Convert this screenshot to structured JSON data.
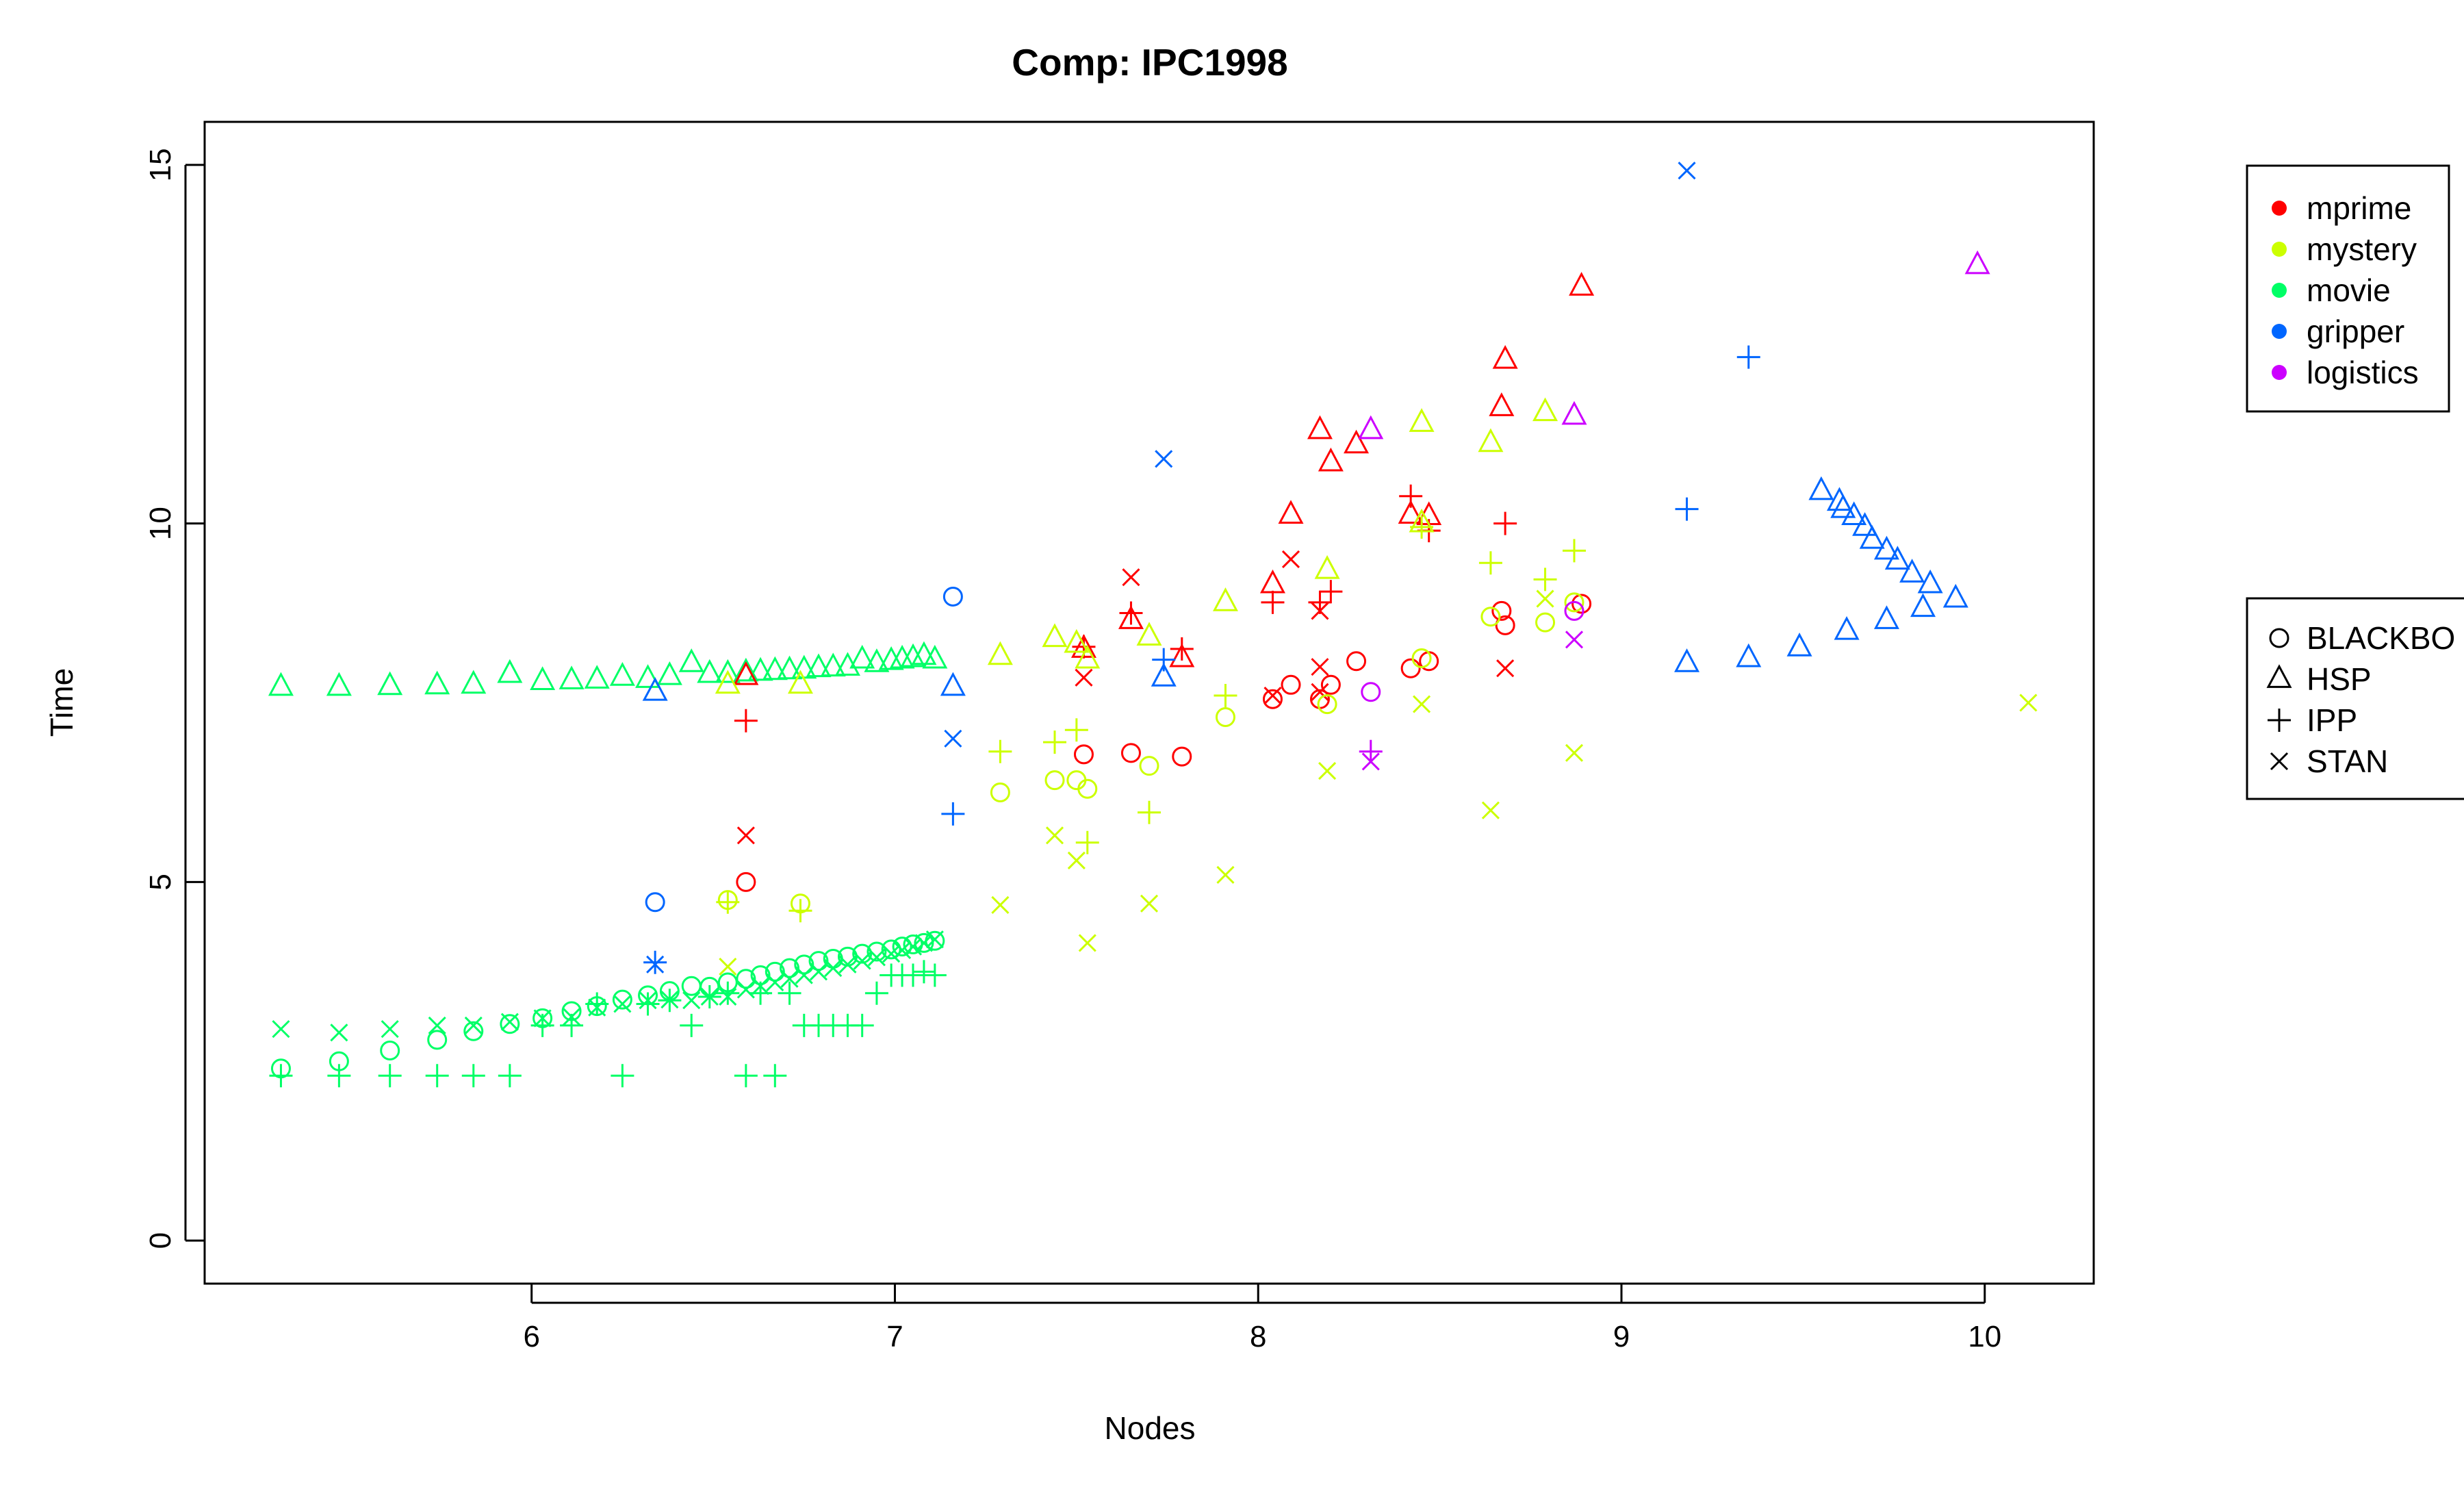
{
  "chart_data": {
    "type": "scatter",
    "title": "Comp: IPC1998",
    "xlabel": "Nodes",
    "ylabel": "Time",
    "xlim": [
      5.1,
      10.3
    ],
    "ylim": [
      -0.6,
      15.6
    ],
    "xticks": [
      6,
      7,
      8,
      9,
      10
    ],
    "yticks": [
      0,
      5,
      10,
      15
    ],
    "grid": false,
    "color_legend": {
      "placement": "right",
      "entries": [
        {
          "name": "mprime",
          "color": "#ff0000"
        },
        {
          "name": "mystery",
          "color": "#ccff00"
        },
        {
          "name": "movie",
          "color": "#00ff66"
        },
        {
          "name": "gripper",
          "color": "#0066ff"
        },
        {
          "name": "logistics",
          "color": "#cc00ff"
        }
      ]
    },
    "shape_legend": {
      "placement": "right",
      "entries": [
        {
          "name": "BLACKBO",
          "shape": "circle"
        },
        {
          "name": "HSP",
          "shape": "triangle"
        },
        {
          "name": "IPP",
          "shape": "plus"
        },
        {
          "name": "STAN",
          "shape": "cross"
        }
      ]
    },
    "series": [
      {
        "domain": "movie",
        "planner": "BLACKBO",
        "points": [
          [
            5.31,
            2.4
          ],
          [
            5.47,
            2.5
          ],
          [
            5.61,
            2.65
          ],
          [
            5.74,
            2.8
          ],
          [
            5.84,
            2.92
          ],
          [
            5.94,
            3.02
          ],
          [
            6.03,
            3.1
          ],
          [
            6.11,
            3.2
          ],
          [
            6.18,
            3.27
          ],
          [
            6.25,
            3.36
          ],
          [
            6.32,
            3.42
          ],
          [
            6.38,
            3.48
          ],
          [
            6.44,
            3.55
          ],
          [
            6.49,
            3.54
          ],
          [
            6.54,
            3.6
          ],
          [
            6.59,
            3.65
          ],
          [
            6.63,
            3.7
          ],
          [
            6.67,
            3.75
          ],
          [
            6.71,
            3.8
          ],
          [
            6.75,
            3.85
          ],
          [
            6.79,
            3.9
          ],
          [
            6.83,
            3.93
          ],
          [
            6.87,
            3.96
          ],
          [
            6.91,
            4.0
          ],
          [
            6.95,
            4.03
          ],
          [
            6.99,
            4.06
          ],
          [
            7.02,
            4.1
          ],
          [
            7.05,
            4.13
          ],
          [
            7.08,
            4.15
          ],
          [
            7.11,
            4.18
          ]
        ]
      },
      {
        "domain": "movie",
        "planner": "HSP",
        "points": [
          [
            5.31,
            7.72
          ],
          [
            5.47,
            7.72
          ],
          [
            5.61,
            7.73
          ],
          [
            5.74,
            7.74
          ],
          [
            5.84,
            7.75
          ],
          [
            5.94,
            7.9
          ],
          [
            6.03,
            7.8
          ],
          [
            6.11,
            7.81
          ],
          [
            6.18,
            7.82
          ],
          [
            6.25,
            7.86
          ],
          [
            6.32,
            7.83
          ],
          [
            6.38,
            7.87
          ],
          [
            6.44,
            8.05
          ],
          [
            6.49,
            7.9
          ],
          [
            6.54,
            7.9
          ],
          [
            6.59,
            7.92
          ],
          [
            6.63,
            7.93
          ],
          [
            6.67,
            7.94
          ],
          [
            6.71,
            7.95
          ],
          [
            6.75,
            7.96
          ],
          [
            6.79,
            7.98
          ],
          [
            6.83,
            7.99
          ],
          [
            6.87,
            8.0
          ],
          [
            6.91,
            8.1
          ],
          [
            6.95,
            8.05
          ],
          [
            6.99,
            8.08
          ],
          [
            7.02,
            8.1
          ],
          [
            7.05,
            8.12
          ],
          [
            7.08,
            8.15
          ],
          [
            7.11,
            8.1
          ]
        ]
      },
      {
        "domain": "movie",
        "planner": "IPP",
        "points": [
          [
            5.31,
            2.3
          ],
          [
            5.47,
            2.3
          ],
          [
            5.61,
            2.3
          ],
          [
            5.74,
            2.3
          ],
          [
            5.84,
            2.3
          ],
          [
            5.94,
            2.3
          ],
          [
            6.03,
            3.0
          ],
          [
            6.11,
            3.0
          ],
          [
            6.18,
            3.3
          ],
          [
            6.25,
            2.3
          ],
          [
            6.32,
            3.3
          ],
          [
            6.38,
            3.35
          ],
          [
            6.44,
            3.0
          ],
          [
            6.49,
            3.4
          ],
          [
            6.54,
            3.45
          ],
          [
            6.59,
            2.3
          ],
          [
            6.63,
            3.45
          ],
          [
            6.67,
            2.3
          ],
          [
            6.71,
            3.45
          ],
          [
            6.75,
            3.0
          ],
          [
            6.79,
            3.0
          ],
          [
            6.83,
            3.0
          ],
          [
            6.87,
            3.0
          ],
          [
            6.91,
            3.0
          ],
          [
            6.95,
            3.45
          ],
          [
            6.99,
            3.7
          ],
          [
            7.02,
            3.7
          ],
          [
            7.05,
            3.7
          ],
          [
            7.08,
            3.75
          ],
          [
            7.11,
            3.7
          ]
        ]
      },
      {
        "domain": "movie",
        "planner": "STAN",
        "points": [
          [
            5.31,
            2.95
          ],
          [
            5.47,
            2.9
          ],
          [
            5.61,
            2.95
          ],
          [
            5.74,
            3.0
          ],
          [
            5.84,
            3.0
          ],
          [
            5.94,
            3.05
          ],
          [
            6.03,
            3.1
          ],
          [
            6.11,
            3.12
          ],
          [
            6.18,
            3.25
          ],
          [
            6.25,
            3.3
          ],
          [
            6.32,
            3.35
          ],
          [
            6.38,
            3.36
          ],
          [
            6.44,
            3.35
          ],
          [
            6.49,
            3.4
          ],
          [
            6.54,
            3.4
          ],
          [
            6.59,
            3.5
          ],
          [
            6.63,
            3.55
          ],
          [
            6.67,
            3.6
          ],
          [
            6.71,
            3.65
          ],
          [
            6.75,
            3.7
          ],
          [
            6.79,
            3.75
          ],
          [
            6.83,
            3.8
          ],
          [
            6.87,
            3.85
          ],
          [
            6.91,
            3.9
          ],
          [
            6.95,
            3.95
          ],
          [
            6.99,
            4.0
          ],
          [
            7.02,
            4.05
          ],
          [
            7.05,
            4.1
          ],
          [
            7.08,
            4.15
          ],
          [
            7.11,
            4.2
          ]
        ]
      },
      {
        "domain": "mprime",
        "planner": "BLACKBO",
        "points": [
          [
            6.59,
            5.0
          ],
          [
            7.52,
            6.78
          ],
          [
            7.65,
            6.8
          ],
          [
            7.79,
            6.75
          ],
          [
            8.04,
            7.55
          ],
          [
            8.09,
            7.75
          ],
          [
            8.17,
            7.55
          ],
          [
            8.2,
            7.75
          ],
          [
            8.27,
            8.08
          ],
          [
            8.42,
            7.98
          ],
          [
            8.47,
            8.08
          ],
          [
            8.67,
            8.78
          ],
          [
            8.68,
            8.58
          ],
          [
            8.89,
            8.88
          ]
        ]
      },
      {
        "domain": "mprime",
        "planner": "HSP",
        "points": [
          [
            6.59,
            7.87
          ],
          [
            7.52,
            8.25
          ],
          [
            7.65,
            8.65
          ],
          [
            7.79,
            8.12
          ],
          [
            8.04,
            9.15
          ],
          [
            8.09,
            10.12
          ],
          [
            8.17,
            11.3
          ],
          [
            8.2,
            10.85
          ],
          [
            8.27,
            11.1
          ],
          [
            8.42,
            10.12
          ],
          [
            8.47,
            10.1
          ],
          [
            8.67,
            11.62
          ],
          [
            8.68,
            12.28
          ],
          [
            8.89,
            13.3
          ]
        ]
      },
      {
        "domain": "mprime",
        "planner": "IPP",
        "points": [
          [
            6.59,
            7.25
          ],
          [
            7.52,
            8.28
          ],
          [
            7.65,
            8.75
          ],
          [
            7.79,
            8.25
          ],
          [
            8.04,
            8.9
          ],
          [
            8.17,
            8.9
          ],
          [
            8.2,
            9.05
          ],
          [
            8.42,
            10.38
          ],
          [
            8.47,
            9.9
          ],
          [
            8.68,
            10.0
          ]
        ]
      },
      {
        "domain": "mprime",
        "planner": "STAN",
        "points": [
          [
            6.59,
            5.65
          ],
          [
            7.52,
            7.85
          ],
          [
            7.65,
            9.25
          ],
          [
            8.04,
            7.6
          ],
          [
            8.09,
            9.5
          ],
          [
            8.17,
            8.0
          ],
          [
            8.17,
            7.65
          ],
          [
            8.17,
            8.78
          ],
          [
            8.68,
            7.98
          ]
        ]
      },
      {
        "domain": "mystery",
        "planner": "BLACKBO",
        "points": [
          [
            6.54,
            4.75
          ],
          [
            6.74,
            4.7
          ],
          [
            7.29,
            6.25
          ],
          [
            7.44,
            6.42
          ],
          [
            7.5,
            6.42
          ],
          [
            7.53,
            6.3
          ],
          [
            7.7,
            6.62
          ],
          [
            7.91,
            7.3
          ],
          [
            8.19,
            7.48
          ],
          [
            8.45,
            8.12
          ],
          [
            8.64,
            8.7
          ],
          [
            8.79,
            8.62
          ],
          [
            8.87,
            8.9
          ]
        ]
      },
      {
        "domain": "mystery",
        "planner": "HSP",
        "points": [
          [
            6.54,
            7.75
          ],
          [
            6.74,
            7.75
          ],
          [
            7.29,
            8.15
          ],
          [
            7.44,
            8.4
          ],
          [
            7.5,
            8.32
          ],
          [
            7.53,
            8.1
          ],
          [
            7.7,
            8.42
          ],
          [
            7.91,
            8.9
          ],
          [
            8.19,
            9.35
          ],
          [
            8.45,
            11.4
          ],
          [
            8.64,
            11.12
          ],
          [
            8.79,
            11.55
          ],
          [
            8.45,
            10.0
          ]
        ]
      },
      {
        "domain": "mystery",
        "planner": "IPP",
        "points": [
          [
            6.54,
            4.72
          ],
          [
            6.74,
            4.6
          ],
          [
            7.29,
            6.82
          ],
          [
            7.44,
            6.95
          ],
          [
            7.5,
            7.12
          ],
          [
            7.53,
            5.55
          ],
          [
            7.7,
            5.97
          ],
          [
            7.91,
            7.6
          ],
          [
            8.45,
            9.95
          ],
          [
            8.64,
            9.45
          ],
          [
            8.79,
            9.22
          ],
          [
            8.87,
            9.62
          ]
        ]
      },
      {
        "domain": "mystery",
        "planner": "STAN",
        "points": [
          [
            6.54,
            3.82
          ],
          [
            7.29,
            4.68
          ],
          [
            7.44,
            5.65
          ],
          [
            7.5,
            5.3
          ],
          [
            7.53,
            4.15
          ],
          [
            7.7,
            4.7
          ],
          [
            7.91,
            5.1
          ],
          [
            8.19,
            6.55
          ],
          [
            8.45,
            7.48
          ],
          [
            8.64,
            6.0
          ],
          [
            8.79,
            8.95
          ],
          [
            8.87,
            6.8
          ],
          [
            10.12,
            7.5
          ]
        ]
      },
      {
        "domain": "gripper",
        "planner": "BLACKBO",
        "points": [
          [
            6.34,
            4.72
          ],
          [
            7.16,
            8.98
          ]
        ]
      },
      {
        "domain": "gripper",
        "planner": "HSP",
        "points": [
          [
            6.34,
            7.65
          ],
          [
            7.16,
            7.72
          ],
          [
            7.74,
            7.85
          ],
          [
            9.18,
            8.05
          ],
          [
            9.35,
            8.12
          ],
          [
            9.49,
            8.27
          ],
          [
            9.62,
            8.5
          ],
          [
            9.73,
            8.65
          ],
          [
            9.83,
            8.82
          ],
          [
            9.92,
            8.95
          ],
          [
            9.55,
            10.45
          ],
          [
            9.6,
            10.3
          ],
          [
            9.61,
            10.2
          ],
          [
            9.64,
            10.1
          ],
          [
            9.67,
            9.95
          ],
          [
            9.69,
            9.77
          ],
          [
            9.73,
            9.62
          ],
          [
            9.76,
            9.48
          ],
          [
            9.8,
            9.3
          ],
          [
            9.85,
            9.15
          ]
        ]
      },
      {
        "domain": "gripper",
        "planner": "IPP",
        "points": [
          [
            6.34,
            3.88
          ],
          [
            7.16,
            5.95
          ],
          [
            7.74,
            8.1
          ],
          [
            9.18,
            10.2
          ],
          [
            9.35,
            12.32
          ]
        ]
      },
      {
        "domain": "gripper",
        "planner": "STAN",
        "points": [
          [
            6.34,
            3.85
          ],
          [
            7.16,
            7.0
          ],
          [
            7.74,
            10.9
          ],
          [
            9.18,
            14.92
          ]
        ]
      },
      {
        "domain": "logistics",
        "planner": "BLACKBO",
        "points": [
          [
            8.31,
            7.65
          ],
          [
            8.87,
            8.78
          ]
        ]
      },
      {
        "domain": "logistics",
        "planner": "HSP",
        "points": [
          [
            8.31,
            11.3
          ],
          [
            8.87,
            11.5
          ],
          [
            9.98,
            13.6
          ]
        ]
      },
      {
        "domain": "logistics",
        "planner": "IPP",
        "points": [
          [
            8.31,
            6.82
          ]
        ]
      },
      {
        "domain": "logistics",
        "planner": "STAN",
        "points": [
          [
            8.31,
            6.68
          ],
          [
            8.87,
            8.38
          ]
        ]
      }
    ]
  }
}
